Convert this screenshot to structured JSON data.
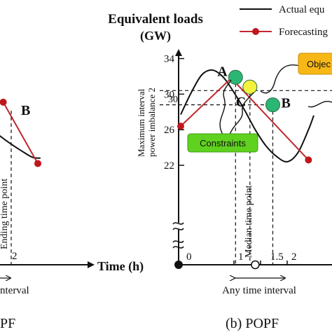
{
  "chart_data": [
    {
      "type": "line",
      "panel_label": "PF",
      "x_axis_label": "Time (h)",
      "x_ticks": [
        2
      ],
      "series": [
        {
          "name": "Actual equivalent loads",
          "points": [
            [
              1.2,
              27.9
            ],
            [
              1.55,
              26.4
            ],
            [
              1.9,
              24.8
            ],
            [
              2.2,
              23.6
            ],
            [
              2.4,
              22.9
            ],
            [
              2.55,
              22.8
            ]
          ]
        },
        {
          "name": "Forecasting",
          "points": [
            [
              1.85,
              29.1
            ],
            [
              2.5,
              22.2
            ]
          ]
        }
      ],
      "annotations": {
        "point_b": "B",
        "dashed_label": "Ending time point",
        "interval_label": "nterval"
      }
    },
    {
      "type": "line",
      "panel_label": "(b) POPF",
      "title": "Equivalent loads",
      "title_unit": "(GW)",
      "y_axis_label_line1": "Maximum interval",
      "y_axis_label_line2": "power imbalance 2",
      "y_ticks": [
        22,
        26,
        30,
        34
      ],
      "y_range": [
        18,
        35
      ],
      "x_axis_label": "Time (h)",
      "x_ticks": [
        {
          "value": 0,
          "label": "0"
        },
        {
          "value": 1,
          "label": "1"
        },
        {
          "value": 1.5,
          "label": "1.5"
        },
        {
          "value": 2,
          "label": "2"
        }
      ],
      "x_range": [
        -0.05,
        2.5
      ],
      "series": [
        {
          "name": "Actual equivalent loads",
          "points": [
            [
              0,
              27.7
            ],
            [
              0.2,
              30.2
            ],
            [
              0.4,
              32.2
            ],
            [
              0.6,
              32.7
            ],
            [
              0.8,
              31.9
            ],
            [
              1.0,
              30.2
            ],
            [
              1.2,
              28.2
            ],
            [
              1.4,
              26.0
            ],
            [
              1.6,
              24.2
            ],
            [
              1.8,
              23.0
            ],
            [
              2.0,
              22.4
            ],
            [
              2.2,
              23.4
            ],
            [
              2.4,
              26.0
            ],
            [
              2.5,
              27.6
            ]
          ]
        },
        {
          "name": "Forecasting",
          "points": [
            [
              0,
              26.4
            ],
            [
              0.95,
              31.8
            ],
            [
              2.4,
              22.6
            ]
          ]
        }
      ],
      "special_points": [
        {
          "label": "A",
          "x": 1.03,
          "y": 31.9,
          "color": "#2bb673"
        },
        {
          "label": "C",
          "x": 1.3,
          "y": 30.8,
          "color": "#f3f23c"
        },
        {
          "label": "B",
          "x": 1.73,
          "y": 28.8,
          "color": "#2bb673"
        }
      ],
      "dashed_value_label": "30",
      "median_label": "Median time point",
      "interval_label": "Any time interval",
      "callouts": {
        "constraints": "Constraints",
        "objective": "Objec"
      }
    }
  ],
  "legend": {
    "actual": "Actual equ",
    "forecasting": "Forecasting"
  },
  "colors": {
    "actual": "#111111",
    "forecast": "#c0282d",
    "forecast_marker": "#c0161e",
    "green_point": "#2bb673",
    "yellow_point": "#f3f23c",
    "constraints_box": "#5fd11f",
    "objective_box": "#f7b717"
  }
}
